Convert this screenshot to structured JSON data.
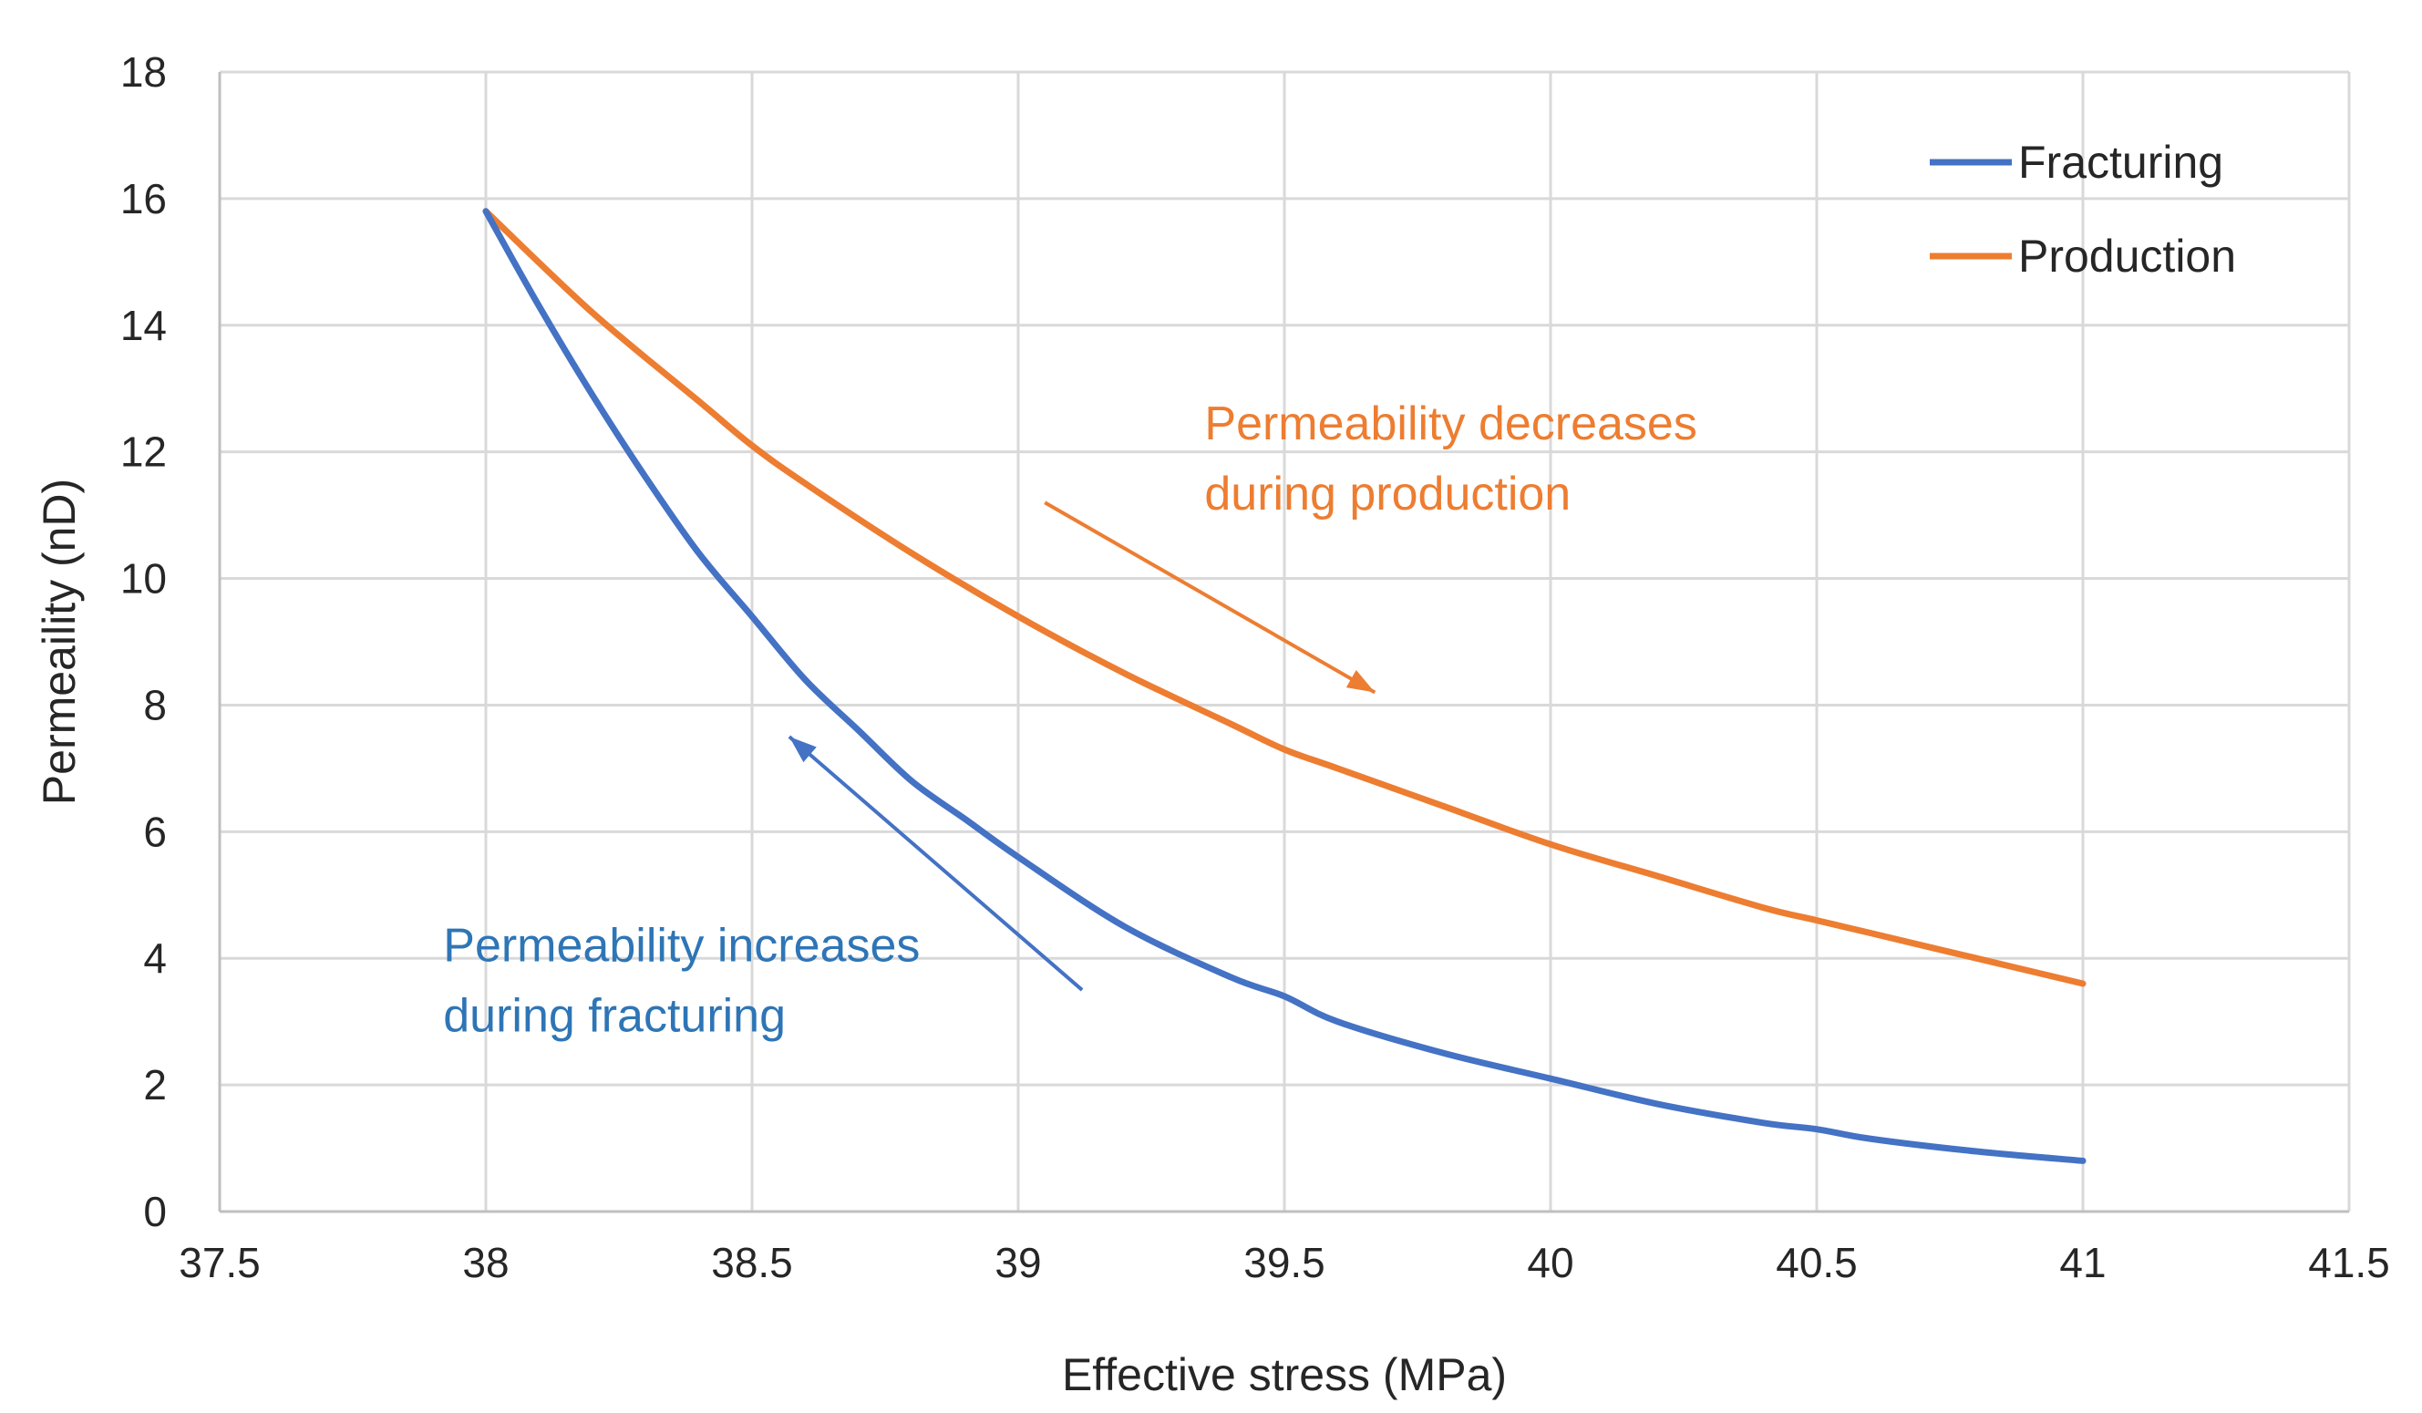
{
  "chart_data": {
    "type": "line",
    "title": "",
    "xlabel": "Effective stress (MPa)",
    "ylabel": "Permeaility (nD)",
    "xlim": [
      37.5,
      41.5
    ],
    "ylim": [
      0,
      18
    ],
    "xticks": [
      37.5,
      38,
      38.5,
      39,
      39.5,
      40,
      40.5,
      41,
      41.5
    ],
    "xtick_labels": [
      "37.5",
      "38",
      "38.5",
      "39",
      "39.5",
      "40",
      "40.5",
      "41",
      "41.5"
    ],
    "yticks": [
      0,
      2,
      4,
      6,
      8,
      10,
      12,
      14,
      16,
      18
    ],
    "ytick_labels": [
      "0",
      "2",
      "4",
      "6",
      "8",
      "10",
      "12",
      "14",
      "16",
      "18"
    ],
    "grid": true,
    "legend_position": "top-right",
    "series": [
      {
        "name": "Fracturing",
        "color": "#4472C4",
        "x": [
          38.0,
          38.1,
          38.2,
          38.3,
          38.4,
          38.5,
          38.6,
          38.7,
          38.8,
          38.9,
          39.0,
          39.2,
          39.4,
          39.5,
          39.6,
          39.8,
          40.0,
          40.2,
          40.4,
          40.5,
          40.6,
          40.8,
          41.0
        ],
        "y": [
          15.8,
          14.3,
          12.9,
          11.6,
          10.4,
          9.4,
          8.4,
          7.6,
          6.8,
          6.2,
          5.6,
          4.5,
          3.7,
          3.4,
          3.0,
          2.5,
          2.1,
          1.7,
          1.4,
          1.3,
          1.15,
          0.95,
          0.8
        ]
      },
      {
        "name": "Production",
        "color": "#ED7D31",
        "x": [
          38.0,
          38.2,
          38.4,
          38.5,
          38.6,
          38.8,
          39.0,
          39.2,
          39.4,
          39.5,
          39.6,
          39.8,
          40.0,
          40.2,
          40.4,
          40.5,
          40.6,
          40.8,
          41.0
        ],
        "y": [
          15.8,
          14.2,
          12.8,
          12.1,
          11.5,
          10.4,
          9.4,
          8.5,
          7.7,
          7.3,
          7.0,
          6.4,
          5.8,
          5.3,
          4.8,
          4.6,
          4.4,
          4.0,
          3.6
        ]
      }
    ],
    "annotations": [
      {
        "line1": "Permeability decreases",
        "line2": "during production",
        "color": "#ED7D31",
        "x": 39.35,
        "y": 12.2,
        "arrow_from": [
          39.05,
          11.2
        ],
        "arrow_to": [
          39.67,
          8.2
        ]
      },
      {
        "line1": "Permeability increases",
        "line2": "during fracturing",
        "color": "#2E75B6",
        "x": 37.92,
        "y": 3.95,
        "arrow_from": [
          39.12,
          3.5
        ],
        "arrow_to": [
          38.57,
          7.5
        ]
      }
    ]
  }
}
